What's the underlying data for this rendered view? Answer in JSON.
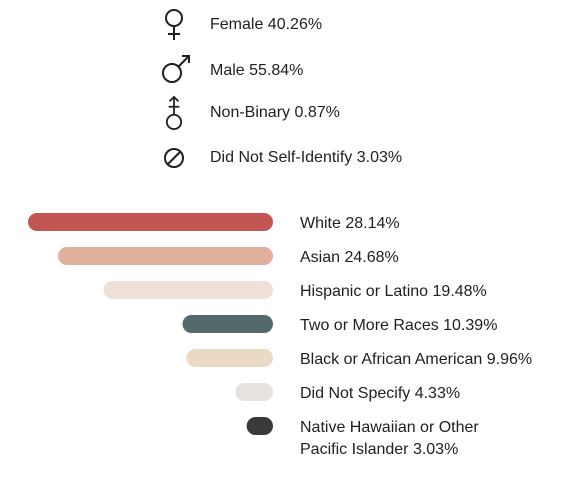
{
  "gender": [
    {
      "icon": "female-icon",
      "label": "Female 40.26%"
    },
    {
      "icon": "male-icon",
      "label": "Male 55.84%"
    },
    {
      "icon": "non-binary-icon",
      "label": "Non-Binary 0.87%"
    },
    {
      "icon": "not-self-identify-icon",
      "label": "Did Not Self-Identify 3.03%"
    }
  ],
  "chart_data": {
    "type": "bar",
    "orientation": "horizontal",
    "bars_aligned": "right",
    "categories": [
      "White",
      "Asian",
      "Hispanic or Latino",
      "Two or More Races",
      "Black or African American",
      "Did Not Specify",
      "Native Hawaiian or Other Pacific Islander"
    ],
    "values": [
      28.14,
      24.68,
      19.48,
      10.39,
      9.96,
      4.33,
      3.03
    ],
    "labels": [
      [
        "White 28.14%"
      ],
      [
        "Asian 24.68%"
      ],
      [
        "Hispanic or Latino 19.48%"
      ],
      [
        "Two or More Races 10.39%"
      ],
      [
        "Black or African American 9.96%"
      ],
      [
        "Did Not Specify 4.33%"
      ],
      [
        "Native Hawaiian or Other",
        "Pacific Islander 3.03%"
      ]
    ],
    "colors": [
      "#c25652",
      "#deb09c",
      "#efe0d8",
      "#53696b",
      "#ead9c4",
      "#e6e3de",
      "#3a3a3a"
    ],
    "xlim": [
      0,
      30
    ],
    "grid": false,
    "legend": "none",
    "title": "",
    "xlabel": "",
    "ylabel": ""
  }
}
